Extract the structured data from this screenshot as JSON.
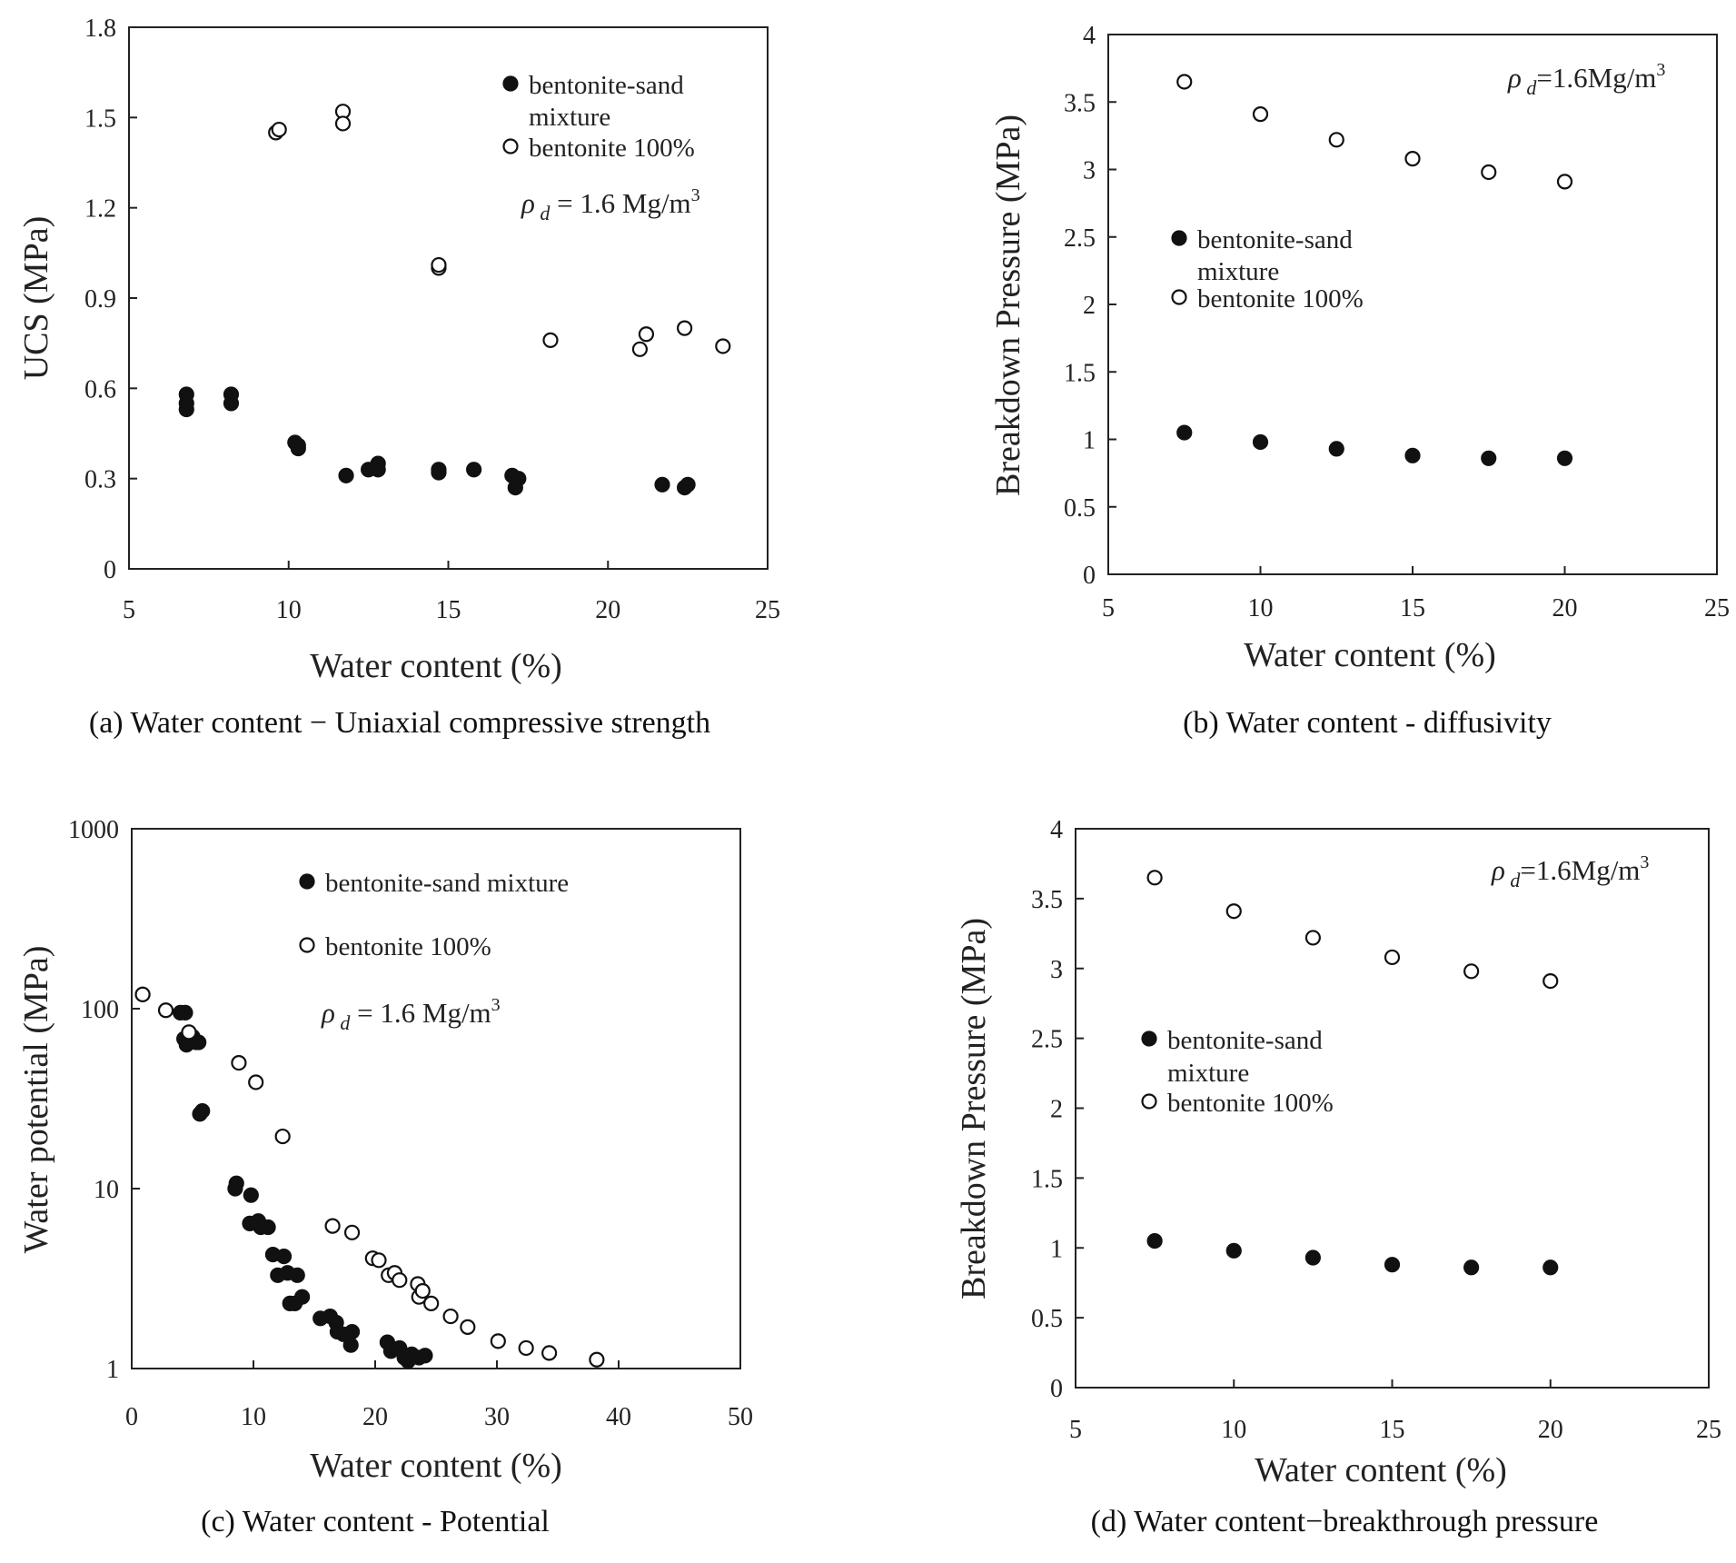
{
  "chart_data": [
    {
      "type": "scatter",
      "caption": "(a) Water content − Uniaxial compressive strength",
      "xlabel": "Water content (%)",
      "ylabel": "UCS (MPa)",
      "xlim": [
        5,
        25
      ],
      "ylim": [
        0,
        1.8
      ],
      "xticks": [
        "5",
        "10",
        "15",
        "20",
        "25"
      ],
      "yticks": [
        "0",
        "0.3",
        "0.6",
        "0.9",
        "1.2",
        "1.5",
        "1.8"
      ],
      "yscale": "linear",
      "legend_position": "top-right",
      "annotation": {
        "symbol": "ρ",
        "sub": "d",
        "text": " = 1.6 Mg/m",
        "sup": "3"
      },
      "series": [
        {
          "name": "bentonite-sand mixture",
          "marker": "filled",
          "points": [
            [
              6.8,
              0.58
            ],
            [
              6.8,
              0.53
            ],
            [
              6.8,
              0.55
            ],
            [
              8.2,
              0.58
            ],
            [
              8.2,
              0.55
            ],
            [
              10.2,
              0.42
            ],
            [
              10.3,
              0.41
            ],
            [
              10.3,
              0.4
            ],
            [
              11.8,
              0.31
            ],
            [
              12.5,
              0.33
            ],
            [
              12.8,
              0.35
            ],
            [
              12.8,
              0.33
            ],
            [
              14.7,
              0.33
            ],
            [
              14.7,
              0.32
            ],
            [
              15.8,
              0.33
            ],
            [
              17.0,
              0.31
            ],
            [
              17.1,
              0.27
            ],
            [
              17.2,
              0.3
            ],
            [
              21.7,
              0.28
            ],
            [
              22.4,
              0.27
            ],
            [
              22.5,
              0.28
            ]
          ]
        },
        {
          "name": "bentonite 100%",
          "marker": "open",
          "points": [
            [
              9.6,
              1.45
            ],
            [
              9.7,
              1.46
            ],
            [
              11.7,
              1.52
            ],
            [
              11.7,
              1.48
            ],
            [
              14.7,
              1.0
            ],
            [
              14.7,
              1.01
            ],
            [
              18.2,
              0.76
            ],
            [
              21.0,
              0.73
            ],
            [
              21.2,
              0.78
            ],
            [
              22.4,
              0.8
            ],
            [
              23.6,
              0.74
            ]
          ]
        }
      ]
    },
    {
      "type": "scatter",
      "caption": "(b) Water content - diffusivity",
      "xlabel": "Water content (%)",
      "ylabel": "Breakdown Pressure (MPa)",
      "xlim": [
        5,
        25
      ],
      "ylim": [
        0,
        4
      ],
      "xticks": [
        "5",
        "10",
        "15",
        "20",
        "25"
      ],
      "yticks": [
        "0",
        "0.5",
        "1",
        "1.5",
        "2",
        "2.5",
        "3",
        "3.5",
        "4"
      ],
      "yscale": "linear",
      "legend_position": "middle-left",
      "annotation": {
        "symbol": "ρ",
        "sub": "d",
        "text": "=1.6Mg/m",
        "sup": "3"
      },
      "series": [
        {
          "name": "bentonite-sand mixture",
          "marker": "filled",
          "points": [
            [
              7.5,
              1.05
            ],
            [
              10,
              0.98
            ],
            [
              12.5,
              0.93
            ],
            [
              15,
              0.88
            ],
            [
              17.5,
              0.86
            ],
            [
              20,
              0.86
            ]
          ]
        },
        {
          "name": "bentonite 100%",
          "marker": "open",
          "points": [
            [
              7.5,
              3.65
            ],
            [
              10,
              3.41
            ],
            [
              12.5,
              3.22
            ],
            [
              15,
              3.08
            ],
            [
              17.5,
              2.98
            ],
            [
              20,
              2.91
            ]
          ]
        }
      ]
    },
    {
      "type": "scatter",
      "caption": "(c) Water content - Potential",
      "xlabel": "Water content (%)",
      "ylabel": "Water potential (MPa)",
      "xlim": [
        0,
        50
      ],
      "ylim": [
        1,
        1000
      ],
      "xticks": [
        "0",
        "10",
        "20",
        "30",
        "40",
        "50"
      ],
      "yticks": [
        "1",
        "10",
        "100",
        "1000"
      ],
      "yscale": "log",
      "legend_position": "top-center",
      "annotation": {
        "symbol": "ρ",
        "sub": "d",
        "text": " = 1.6 Mg/m",
        "sup": "3"
      },
      "series": [
        {
          "name": "bentonite-sand mixture",
          "marker": "filled",
          "points": [
            [
              0.9,
              120
            ],
            [
              4.0,
              95
            ],
            [
              4.4,
              95
            ],
            [
              4.3,
              68
            ],
            [
              4.5,
              63
            ],
            [
              5.0,
              70
            ],
            [
              5.3,
              65
            ],
            [
              5.5,
              65
            ],
            [
              5.6,
              26
            ],
            [
              5.8,
              27
            ],
            [
              8.5,
              10
            ],
            [
              8.6,
              10.7
            ],
            [
              9.8,
              9.2
            ],
            [
              9.7,
              6.4
            ],
            [
              10.4,
              6.6
            ],
            [
              10.6,
              6.1
            ],
            [
              11.2,
              6.1
            ],
            [
              11.6,
              4.3
            ],
            [
              12.0,
              3.3
            ],
            [
              12.5,
              4.2
            ],
            [
              12.8,
              3.4
            ],
            [
              13.0,
              2.3
            ],
            [
              13.6,
              3.3
            ],
            [
              13.4,
              2.3
            ],
            [
              14.0,
              2.5
            ],
            [
              15.5,
              1.9
            ],
            [
              16.3,
              1.95
            ],
            [
              16.8,
              1.8
            ],
            [
              16.9,
              1.6
            ],
            [
              17.4,
              1.55
            ],
            [
              18.0,
              1.35
            ],
            [
              18.1,
              1.6
            ],
            [
              21.0,
              1.4
            ],
            [
              21.3,
              1.25
            ],
            [
              22.0,
              1.3
            ],
            [
              22.4,
              1.15
            ],
            [
              22.7,
              1.1
            ],
            [
              23.0,
              1.2
            ],
            [
              23.6,
              1.15
            ],
            [
              24.1,
              1.18
            ]
          ]
        },
        {
          "name": "bentonite 100%",
          "marker": "open",
          "points": [
            [
              0.9,
              120
            ],
            [
              2.8,
              98
            ],
            [
              4.7,
              74
            ],
            [
              8.8,
              50
            ],
            [
              10.2,
              39
            ],
            [
              12.4,
              19.5
            ],
            [
              16.5,
              6.2
            ],
            [
              18.1,
              5.7
            ],
            [
              19.8,
              4.1
            ],
            [
              20.3,
              4.0
            ],
            [
              21.1,
              3.3
            ],
            [
              21.6,
              3.4
            ],
            [
              22.0,
              3.1
            ],
            [
              23.5,
              2.95
            ],
            [
              23.6,
              2.5
            ],
            [
              23.9,
              2.7
            ],
            [
              24.6,
              2.3
            ],
            [
              26.2,
              1.95
            ],
            [
              27.6,
              1.7
            ],
            [
              30.1,
              1.42
            ],
            [
              32.4,
              1.3
            ],
            [
              34.3,
              1.22
            ],
            [
              38.2,
              1.12
            ]
          ]
        }
      ]
    },
    {
      "type": "scatter",
      "caption": "(d) Water content−breakthrough pressure",
      "xlabel": "Water content (%)",
      "ylabel": "Breakdown Pressure (MPa)",
      "xlim": [
        5,
        25
      ],
      "ylim": [
        0,
        4
      ],
      "xticks": [
        "5",
        "10",
        "15",
        "20",
        "25"
      ],
      "yticks": [
        "0",
        "0.5",
        "1",
        "1.5",
        "2",
        "2.5",
        "3",
        "3.5",
        "4"
      ],
      "yscale": "linear",
      "legend_position": "middle-left",
      "annotation": {
        "symbol": "ρ",
        "sub": "d",
        "text": "=1.6Mg/m",
        "sup": "3"
      },
      "series": [
        {
          "name": "bentonite-sand mixture",
          "marker": "filled",
          "points": [
            [
              7.5,
              1.05
            ],
            [
              10,
              0.98
            ],
            [
              12.5,
              0.93
            ],
            [
              15,
              0.88
            ],
            [
              17.5,
              0.86
            ],
            [
              20,
              0.86
            ]
          ]
        },
        {
          "name": "bentonite 100%",
          "marker": "open",
          "points": [
            [
              7.5,
              3.65
            ],
            [
              10,
              3.41
            ],
            [
              12.5,
              3.22
            ],
            [
              15,
              3.08
            ],
            [
              17.5,
              2.98
            ],
            [
              20,
              2.91
            ]
          ]
        }
      ]
    }
  ]
}
